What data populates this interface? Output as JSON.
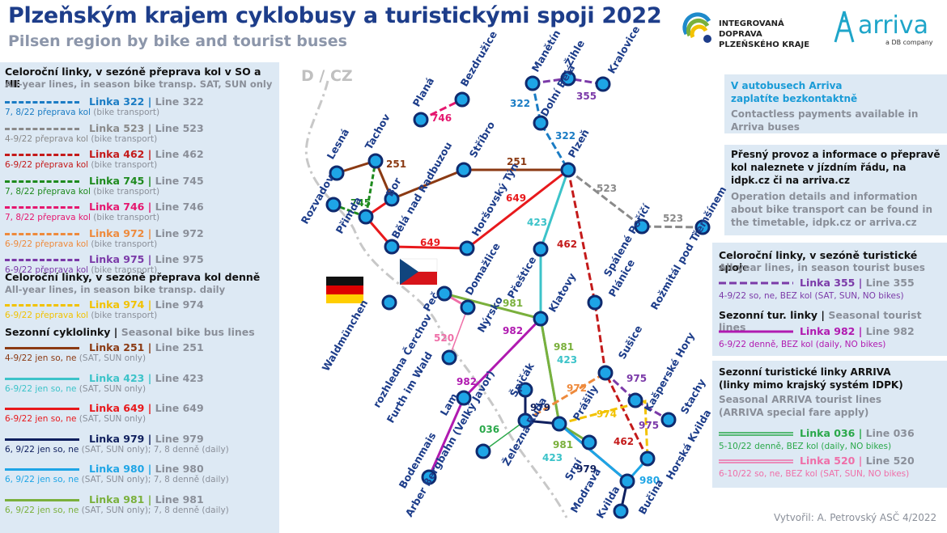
{
  "header": {
    "title": "Plzeňským krajem cyklobusy a turistickými spoji 2022",
    "subtitle": "Pilsen region by bike and tourist buses",
    "idpk_logo_text": [
      "INTEGROVANÁ DOPRAVA",
      "PLZEŇSKÉHO KRAJE"
    ],
    "arriva_logo": "arriva",
    "arriva_sub": "a DB company"
  },
  "legend_left": {
    "section1": {
      "title": "Celoroční linky, v sezóně přeprava kol v SO a NE",
      "subtitle": "All-year lines, in season bike transp. SAT, SUN only"
    },
    "section2": {
      "title": "Celoroční linky, v sezóně přeprava kol denně",
      "subtitle": "All-year lines, in season bike transp. daily"
    },
    "section3": {
      "title": "Sezonní cyklolinky",
      "subtitle": "Seasonal bike bus lines"
    },
    "lines": [
      {
        "name": "Linka 322",
        "en": "Line 322",
        "desc": "7, 8/22 přeprava kol",
        "desc_en": "(bike transport)",
        "color": "#1a7cc4",
        "dash": true
      },
      {
        "name": "Linka 523",
        "en": "Line 523",
        "desc": "4-9/22 přeprava kol",
        "desc_en": "(bike transport)",
        "color": "#8a8a8a",
        "dash": true
      },
      {
        "name": "Linka 462",
        "en": "Line 462",
        "desc": "6-9/22 přeprava kol",
        "desc_en": "(bike transport)",
        "color": "#c41a1a",
        "dash": true
      },
      {
        "name": "Linka 745",
        "en": "Line 745",
        "desc": "7, 8/22 přeprava kol",
        "desc_en": "(bike transport)",
        "color": "#1e8a1e",
        "dash": true
      },
      {
        "name": "Linka 746",
        "en": "Line 746",
        "desc": "7, 8/22 přeprava kol",
        "desc_en": "(bike transport)",
        "color": "#e5176f",
        "dash": true
      },
      {
        "name": "Linka 972",
        "en": "Line 972",
        "desc": "6-9/22 přeprava kol",
        "desc_en": "(bike transport)",
        "color": "#ee8a3c",
        "dash": true
      },
      {
        "name": "Linka 975",
        "en": "Line 975",
        "desc": "6-9/22 přeprava kol",
        "desc_en": "(bike transport)",
        "color": "#7b3aa8",
        "dash": true
      },
      {
        "name": "Linka 974",
        "en": "Line 974",
        "desc": "6-9/22 přeprava kol",
        "desc_en": "(bike transport)",
        "color": "#f2c200",
        "dash": true
      },
      {
        "name": "Linka 251",
        "en": "Line 251",
        "desc": "4-9/22 jen so, ne",
        "desc_en": "(SAT, SUN only)",
        "color": "#8b3a13",
        "dash": false
      },
      {
        "name": "Linka 423",
        "en": "Line 423",
        "desc": "6-9/22 jen so, ne",
        "desc_en": "(SAT, SUN only)",
        "color": "#3cc3c9",
        "dash": false
      },
      {
        "name": "Linka 649",
        "en": "Line 649",
        "desc": "6-9/22 jen so, ne",
        "desc_en": "(SAT, SUN only)",
        "color": "#e8191c",
        "dash": false
      },
      {
        "name": "Linka 979",
        "en": "Line 979",
        "desc": "6, 9/22 jen so, ne",
        "desc_en": "(SAT, SUN only); 7, 8 denně (daily)",
        "color": "#0f1f5e",
        "dash": false
      },
      {
        "name": "Linka 980",
        "en": "Line 980",
        "desc": "6, 9/22 jen so, ne",
        "desc_en": "(SAT, SUN only); 7, 8 denně (daily)",
        "color": "#1ea5e6",
        "dash": false
      },
      {
        "name": "Linka 981",
        "en": "Line 981",
        "desc": "6, 9/22 jen so, ne",
        "desc_en": "(SAT, SUN only); 7, 8 denně (daily)",
        "color": "#7ab03c",
        "dash": false
      }
    ]
  },
  "right_info": {
    "payment_cz": "V autobusech Arriva zaplatíte bezkontaktně",
    "payment_en": "Contactless payments available in Arriva buses",
    "details_cz": "Přesný provoz a informace o přepravě kol naleznete v jízdním řádu, na idpk.cz či na arriva.cz",
    "details_en": "Operation details and information about bike transport can be found in the timetable, idpk.cz or arriva.cz",
    "tourist_title": "Celoroční linky, v sezóně turistické spoje",
    "tourist_sub": "All-year lines, in season tourist buses",
    "l355_name": "Linka 355",
    "l355_en": "Line 355",
    "l355_desc": "4-9/22 so, ne, BEZ kol (SAT, SUN, NO bikes)",
    "seasonal_title": "Sezonní tur. linky",
    "seasonal_en": "Seasonal tourist lines",
    "l982_name": "Linka 982",
    "l982_en": "Line 982",
    "l982_desc": "6-9/22 denně, BEZ kol (daily, NO bikes)",
    "arriva_title": "Sezonní turistické linky ARRIVA (linky mimo krajský systém IDPK)",
    "arriva_sub": "Seasonal ARRIVA tourist lines (ARRIVA special fare apply)",
    "l036_name": "Linka 036",
    "l036_en": "Line 036",
    "l036_desc": "5-10/22 denně, BEZ kol (daily, NO bikes)",
    "l520_name": "Linka 520",
    "l520_en": "Line 520",
    "l520_desc": "6-10/22 so, ne, BEZ kol (SAT, SUN, NO bikes)"
  },
  "map": {
    "border_label": "D / CZ",
    "stations": [
      "Manětín",
      "Žihle",
      "Kralovice",
      "Planá",
      "Bezdružice",
      "Dolní Bělá",
      "Lesná",
      "Tachov",
      "Stříbro",
      "Plzeň",
      "Rozvadov",
      "Bor",
      "Bělá nad Radbuzou",
      "Přimda",
      "Horšovský Týn",
      "Spálené Poříčí",
      "Rožmitál pod Třemšínem",
      "Domažlice",
      "Přeštice",
      "Klatovy",
      "Plánice",
      "Waldmünchen",
      "Peč",
      "rozhledna Čerchov",
      "Furth im Wald",
      "Nýrsko",
      "Sušice",
      "Kašperské Hory",
      "Stachy",
      "Lam",
      "Špičák",
      "Prášily",
      "Bodenmais",
      "Arber Bergbahn (Velký Javor)",
      "Železná Ruda",
      "Srní",
      "Modrava",
      "Kvilda",
      "Horská Kvilda",
      "Bučina"
    ],
    "line_labels": [
      "322",
      "322",
      "355",
      "746",
      "251",
      "251",
      "745",
      "649",
      "649",
      "423",
      "462",
      "523",
      "523",
      "981",
      "982",
      "520",
      "982",
      "981",
      "423",
      "972",
      "979",
      "974",
      "975",
      "975",
      "462",
      "036",
      "981",
      "423",
      "979",
      "980"
    ]
  },
  "credit": "Vytvořil: A. Petrovský ASČ 4/2022"
}
